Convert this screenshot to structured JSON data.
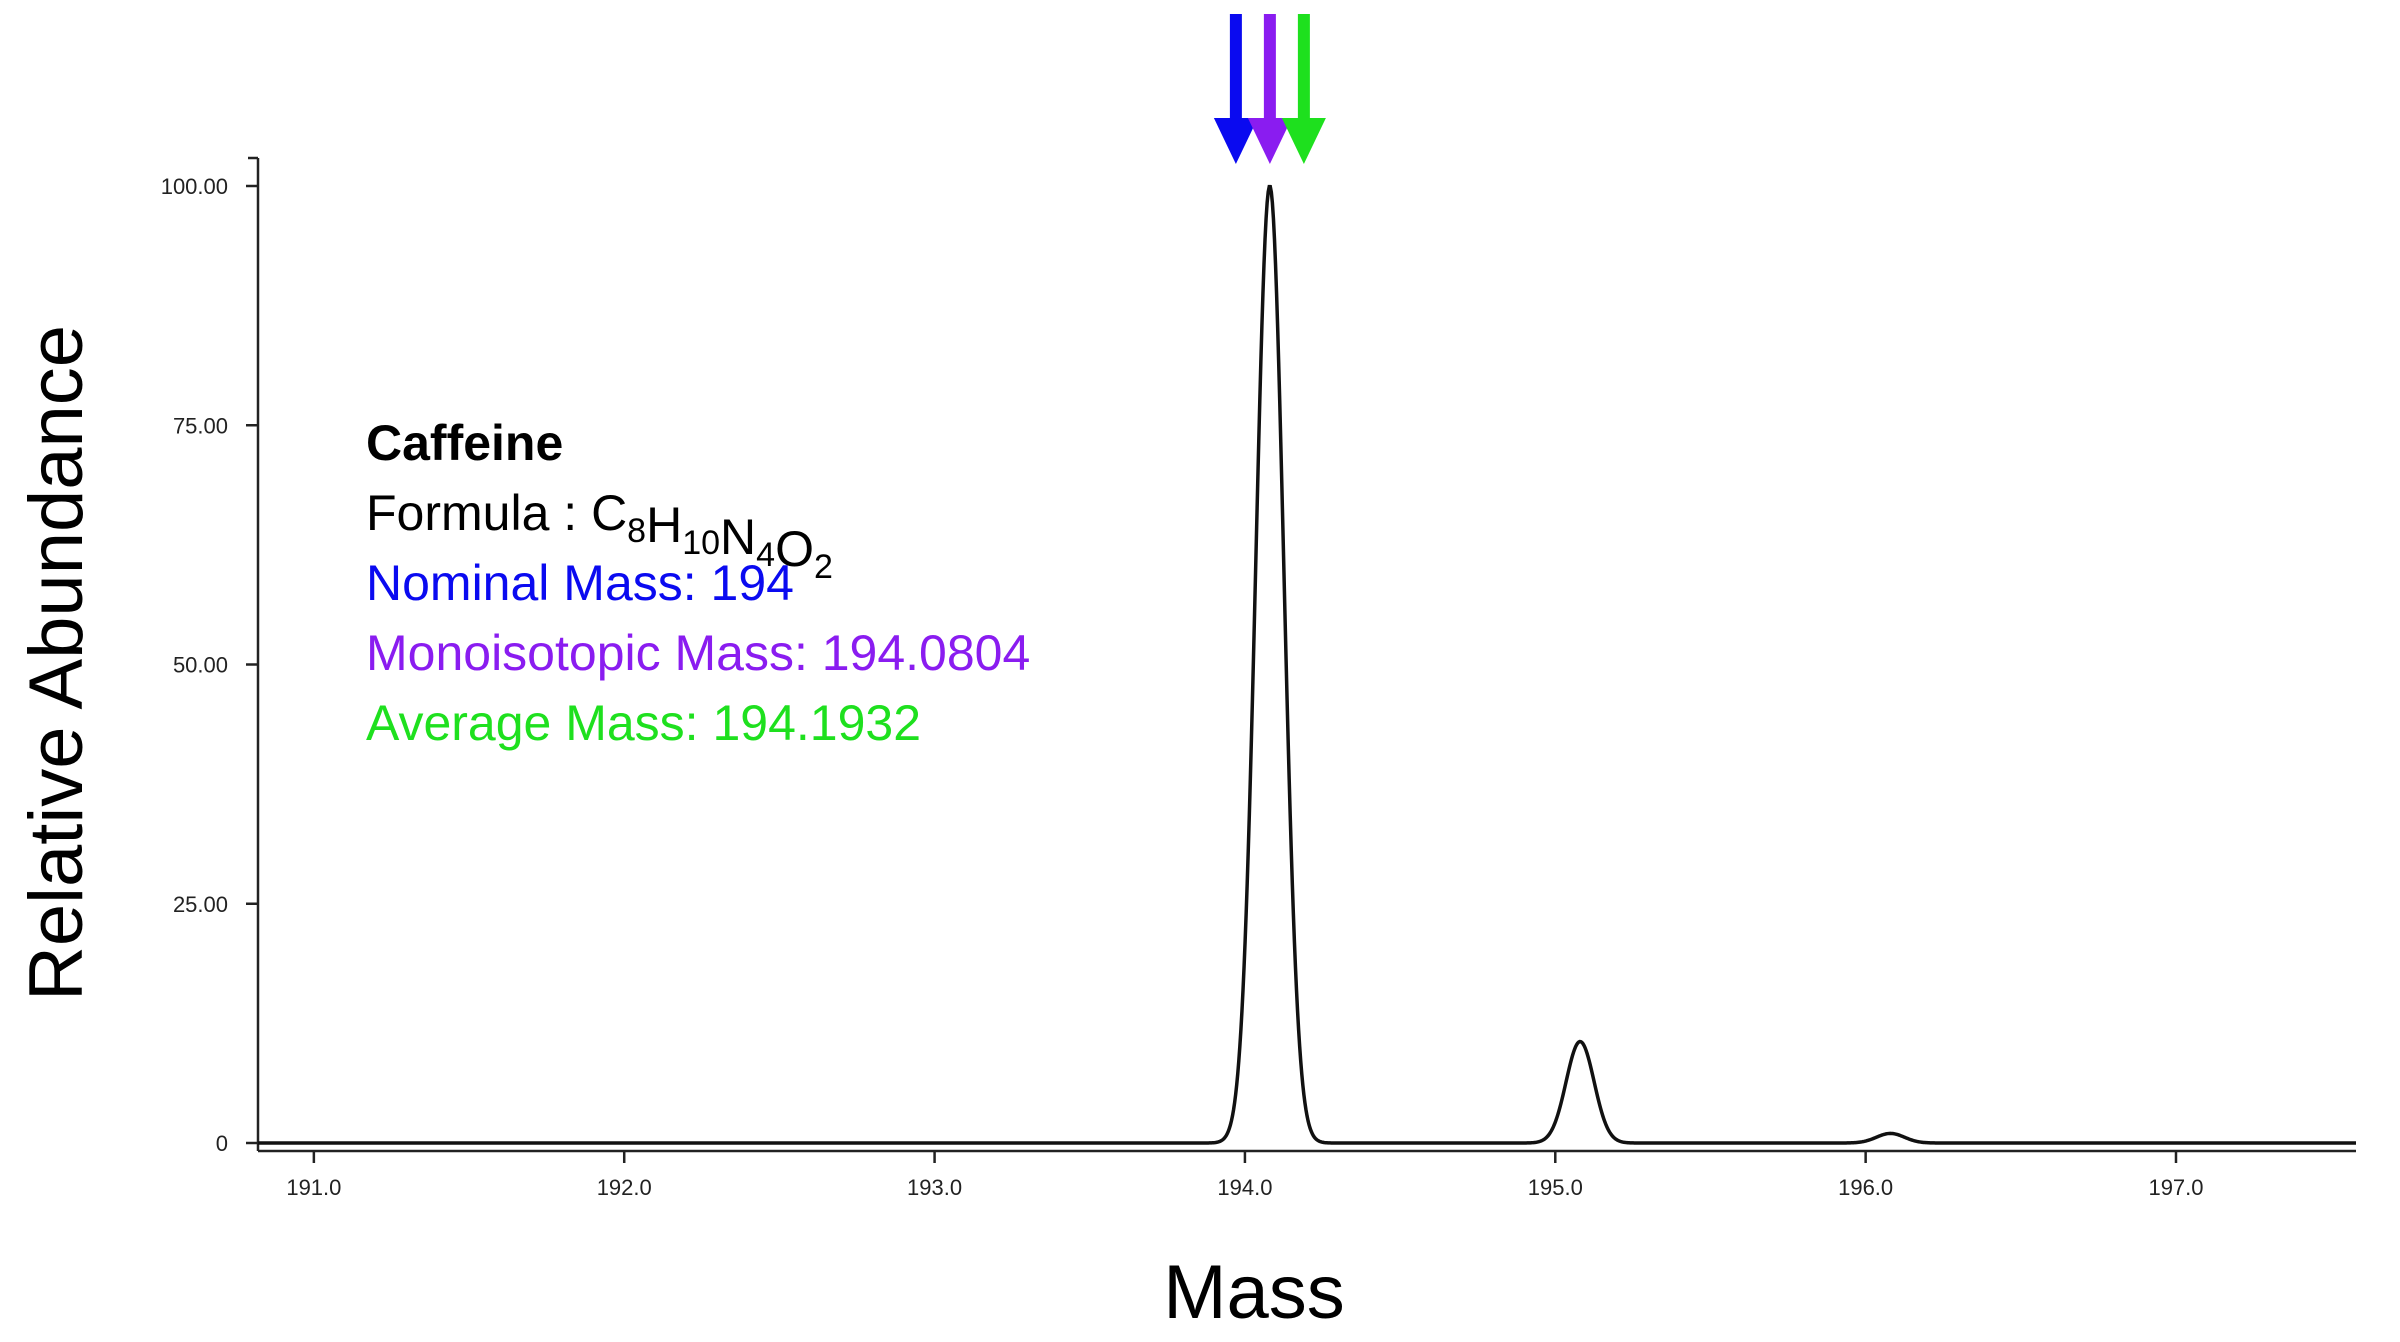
{
  "chart_data": {
    "type": "line",
    "xlabel": "Mass",
    "ylabel": "Relative Abundance",
    "xlim": [
      190.82,
      197.58
    ],
    "ylim": [
      0,
      100
    ],
    "x_ticks": [
      191.0,
      192.0,
      193.0,
      194.0,
      195.0,
      196.0,
      197.0
    ],
    "x_tick_labels": [
      "191.0",
      "192.0",
      "193.0",
      "194.0",
      "195.0",
      "196.0",
      "197.0"
    ],
    "y_ticks": [
      0,
      25,
      50,
      75,
      100
    ],
    "y_tick_labels": [
      "0",
      "25.00",
      "50.00",
      "75.00",
      "100.00"
    ],
    "peaks": [
      {
        "x": 194.08,
        "y": 100
      },
      {
        "x": 195.08,
        "y": 10.6
      },
      {
        "x": 196.08,
        "y": 1.0
      }
    ],
    "peak_width": 0.045,
    "grid": false
  },
  "annotation": {
    "compound": "Caffeine",
    "formula_prefix": "Formula : ",
    "formula": [
      {
        "el": "C",
        "n": "8"
      },
      {
        "el": "H",
        "n": "10"
      },
      {
        "el": "N",
        "n": "4"
      },
      {
        "el": "O",
        "n": "2"
      }
    ],
    "nominal": {
      "label": "Nominal Mass:  194",
      "value": 194.0,
      "color": "#0a0af0"
    },
    "monoisotopic": {
      "label": "Monoisotopic Mass: 194.0804",
      "value": 194.0804,
      "color": "#8a1cf0"
    },
    "average": {
      "label": "Average Mass: 194.1932",
      "value": 194.1932,
      "color": "#1ee01e"
    }
  },
  "colors": {
    "trace": "#111111",
    "axis": "#222222",
    "text": "#000000"
  }
}
